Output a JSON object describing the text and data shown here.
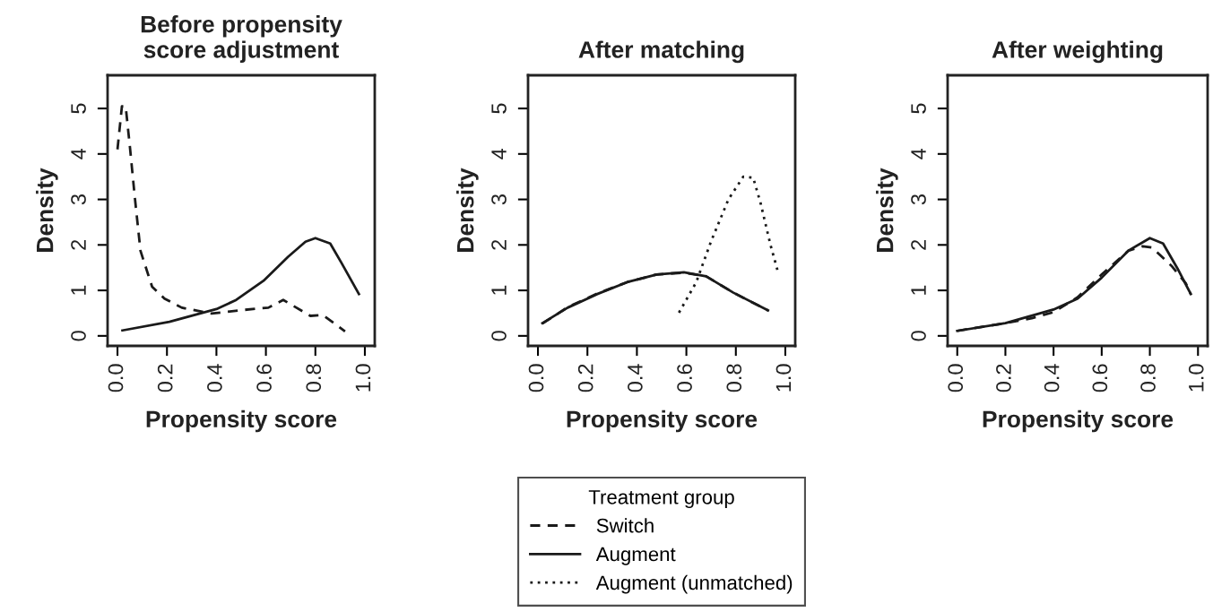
{
  "chart_data": [
    {
      "type": "line",
      "title": "Before propensity\nscore adjustment",
      "xlabel": "Propensity score",
      "ylabel": "Density",
      "xlim": [
        -0.04,
        1.04
      ],
      "ylim": [
        -0.22,
        5.73
      ],
      "xticks": [
        {
          "value": 0,
          "label": "0.0"
        },
        {
          "value": 0.2,
          "label": "0.2"
        },
        {
          "value": 0.4,
          "label": "0.4"
        },
        {
          "value": 0.6,
          "label": "0.6"
        },
        {
          "value": 0.8,
          "label": "0.8"
        },
        {
          "value": 1,
          "label": "1.0"
        }
      ],
      "yticks": [
        0,
        1,
        2,
        3,
        4,
        5
      ],
      "grid": false,
      "legend": false,
      "series": [
        {
          "color": "#1a1a1a",
          "line_style": "dashed",
          "x": [
            0.0,
            0.018,
            0.033,
            0.05,
            0.07,
            0.093,
            0.14,
            0.19,
            0.26,
            0.38,
            0.49,
            0.61,
            0.67,
            0.78,
            0.83,
            0.92
          ],
          "values": [
            4.1,
            5.05,
            5.05,
            4.17,
            3.05,
            1.87,
            1.08,
            0.82,
            0.62,
            0.49,
            0.56,
            0.62,
            0.79,
            0.44,
            0.46,
            0.1
          ]
        },
        {
          "color": "#1a1a1a",
          "line_style": "solid",
          "x": [
            0.02,
            0.21,
            0.4,
            0.48,
            0.59,
            0.69,
            0.76,
            0.8,
            0.86,
            0.905,
            0.976
          ],
          "values": [
            0.12,
            0.31,
            0.59,
            0.79,
            1.21,
            1.74,
            2.07,
            2.15,
            2.03,
            1.61,
            0.92
          ]
        }
      ]
    },
    {
      "type": "line",
      "title": "After matching",
      "xlabel": "Propensity score",
      "ylabel": "Density",
      "legend_title": "Treatment group",
      "xlim": [
        -0.04,
        1.04
      ],
      "ylim": [
        -0.22,
        5.73
      ],
      "xticks": [
        {
          "value": 0,
          "label": "0.0"
        },
        {
          "value": 0.2,
          "label": "0.2"
        },
        {
          "value": 0.4,
          "label": "0.4"
        },
        {
          "value": 0.6,
          "label": "0.6"
        },
        {
          "value": 0.8,
          "label": "0.8"
        },
        {
          "value": 1,
          "label": "1.0"
        }
      ],
      "yticks": [
        0,
        1,
        2,
        3,
        4,
        5
      ],
      "grid": false,
      "legend": "bottom",
      "series": [
        {
          "name": "Switch",
          "color": "#1a1a1a",
          "line_style": "dashed",
          "x": [
            0.018,
            0.12,
            0.24,
            0.36,
            0.48,
            0.59,
            0.68,
            0.79,
            0.93
          ],
          "values": [
            0.27,
            0.63,
            0.93,
            1.18,
            1.35,
            1.39,
            1.31,
            0.95,
            0.56
          ]
        },
        {
          "name": "Augment",
          "color": "#1a1a1a",
          "line_style": "solid",
          "x": [
            0.018,
            0.12,
            0.24,
            0.36,
            0.48,
            0.59,
            0.68,
            0.79,
            0.93
          ],
          "values": [
            0.28,
            0.62,
            0.92,
            1.18,
            1.35,
            1.4,
            1.31,
            0.95,
            0.56
          ]
        },
        {
          "name": "Augment (unmatched)",
          "color": "#1a1a1a",
          "line_style": "dotted",
          "x": [
            0.57,
            0.64,
            0.7,
            0.77,
            0.83,
            0.87,
            0.9,
            0.94,
            0.97
          ],
          "values": [
            0.51,
            1.18,
            2.08,
            3.0,
            3.5,
            3.48,
            2.92,
            2.0,
            1.41
          ]
        }
      ]
    },
    {
      "type": "line",
      "title": "After weighting",
      "xlabel": "Propensity score",
      "ylabel": "Density",
      "xlim": [
        -0.04,
        1.04
      ],
      "ylim": [
        -0.22,
        5.73
      ],
      "xticks": [
        {
          "value": 0,
          "label": "0.0"
        },
        {
          "value": 0.2,
          "label": "0.2"
        },
        {
          "value": 0.4,
          "label": "0.4"
        },
        {
          "value": 0.6,
          "label": "0.6"
        },
        {
          "value": 0.8,
          "label": "0.8"
        },
        {
          "value": 1,
          "label": "1.0"
        }
      ],
      "yticks": [
        0,
        1,
        2,
        3,
        4,
        5
      ],
      "grid": false,
      "legend": false,
      "series": [
        {
          "color": "#1a1a1a",
          "line_style": "dashed",
          "x": [
            0.0,
            0.2,
            0.31,
            0.4,
            0.5,
            0.6,
            0.71,
            0.77,
            0.81,
            0.89,
            0.95,
            0.97
          ],
          "values": [
            0.11,
            0.28,
            0.39,
            0.52,
            0.85,
            1.35,
            1.87,
            1.97,
            1.94,
            1.54,
            1.15,
            0.92
          ]
        },
        {
          "color": "#1a1a1a",
          "line_style": "solid",
          "x": [
            0.0,
            0.2,
            0.4,
            0.5,
            0.6,
            0.71,
            0.8,
            0.855,
            0.915,
            0.97
          ],
          "values": [
            0.11,
            0.28,
            0.58,
            0.82,
            1.28,
            1.87,
            2.15,
            2.03,
            1.48,
            0.92
          ]
        }
      ]
    }
  ]
}
